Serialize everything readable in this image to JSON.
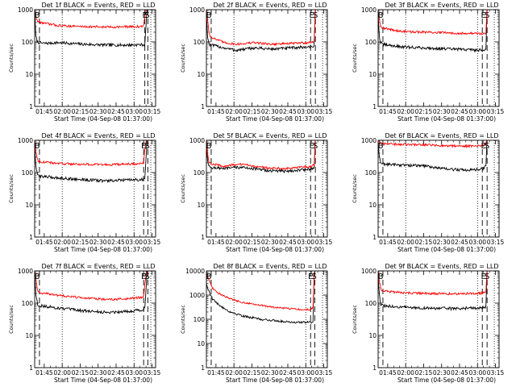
{
  "colors": {
    "events": "#000000",
    "lld": "#ff0000",
    "axes": "#000000",
    "background": "#ffffff"
  },
  "chart_data": [
    {
      "type": "line",
      "title": "Det 1f BLACK = Events, RED = LLD",
      "xlabel": "Start Time (04-Sep-08 01:37:00)",
      "ylabel": "Counts/sec",
      "y_scale": "log",
      "ylim": [
        1,
        1000
      ],
      "ytick_labels": [
        "1",
        "10",
        "100",
        "1000"
      ],
      "x_unit": "minutes after 01:37:00",
      "xlim": [
        0,
        101
      ],
      "xtick_labels": [
        "01:45",
        "02:00",
        "02:15",
        "02:30",
        "02:45",
        "03:00",
        "03:15"
      ],
      "markers": [
        {
          "label": "E",
          "x": 92
        },
        {
          "label": "S",
          "x": 94
        }
      ],
      "dashed_lines_x": [
        4,
        92,
        94.5
      ],
      "dotted_lines_x": [
        23,
        83,
        97
      ],
      "series": [
        {
          "name": "Events",
          "color": "#000000",
          "x": [
            0,
            1,
            2,
            3,
            8,
            20,
            40,
            60,
            75,
            90,
            91,
            92,
            94
          ],
          "values": [
            800,
            150,
            105,
            95,
            90,
            95,
            85,
            80,
            80,
            82,
            82,
            82,
            1200
          ]
        },
        {
          "name": "LLD",
          "color": "#ff0000",
          "x": [
            0,
            1,
            2,
            3,
            8,
            20,
            40,
            60,
            75,
            90,
            91,
            92,
            94
          ],
          "values": [
            1100,
            600,
            480,
            420,
            380,
            320,
            300,
            290,
            295,
            300,
            310,
            700,
            1200
          ]
        }
      ]
    },
    {
      "type": "line",
      "title": "Det 2f BLACK = Events, RED = LLD",
      "xlabel": "Start Time (04-Sep-08 01:37:00)",
      "ylabel": "Counts/sec",
      "y_scale": "log",
      "ylim": [
        1,
        1000
      ],
      "ytick_labels": [
        "1",
        "10",
        "100",
        "1000"
      ],
      "x_unit": "minutes after 01:37:00",
      "xlim": [
        0,
        101
      ],
      "xtick_labels": [
        "01:45",
        "02:00",
        "02:15",
        "02:30",
        "02:45",
        "03:00",
        "03:15"
      ],
      "markers": [
        {
          "label": "E",
          "x": 88
        },
        {
          "label": "S",
          "x": 91
        }
      ],
      "dashed_lines_x": [
        4,
        87,
        91
      ],
      "dotted_lines_x": [
        23,
        83,
        97
      ],
      "series": [
        {
          "name": "Events",
          "color": "#000000",
          "x": [
            0,
            1,
            2,
            3,
            8,
            15,
            25,
            40,
            55,
            70,
            85,
            90,
            91
          ],
          "values": [
            700,
            150,
            90,
            80,
            75,
            65,
            55,
            65,
            60,
            65,
            70,
            75,
            1200
          ]
        },
        {
          "name": "LLD",
          "color": "#ff0000",
          "x": [
            0,
            1,
            2,
            3,
            8,
            15,
            25,
            40,
            55,
            70,
            85,
            90,
            91
          ],
          "values": [
            1100,
            500,
            220,
            150,
            120,
            95,
            85,
            95,
            85,
            90,
            95,
            100,
            1200
          ]
        }
      ]
    },
    {
      "type": "line",
      "title": "Det 3f BLACK = Events, RED = LLD",
      "xlabel": "Start Time (04-Sep-08 01:37:00)",
      "ylabel": "Counts/sec",
      "y_scale": "log",
      "ylim": [
        1,
        1000
      ],
      "ytick_labels": [
        "1",
        "10",
        "100",
        "1000"
      ],
      "x_unit": "minutes after 01:37:00",
      "xlim": [
        0,
        101
      ],
      "xtick_labels": [
        "01:45",
        "02:00",
        "02:15",
        "02:30",
        "02:45",
        "03:00",
        "03:15"
      ],
      "markers": [
        {
          "label": "E",
          "x": 88
        },
        {
          "label": "S",
          "x": 91
        }
      ],
      "dashed_lines_x": [
        4,
        87,
        91
      ],
      "dotted_lines_x": [
        23,
        83,
        97
      ],
      "series": [
        {
          "name": "Events",
          "color": "#000000",
          "x": [
            0,
            1,
            2,
            3,
            8,
            20,
            40,
            60,
            75,
            88,
            90,
            91
          ],
          "values": [
            700,
            150,
            95,
            85,
            80,
            70,
            65,
            60,
            58,
            55,
            60,
            1200
          ]
        },
        {
          "name": "LLD",
          "color": "#ff0000",
          "x": [
            0,
            1,
            2,
            3,
            8,
            20,
            40,
            60,
            75,
            88,
            90,
            91
          ],
          "values": [
            1100,
            500,
            350,
            280,
            250,
            210,
            200,
            190,
            185,
            180,
            190,
            1200
          ]
        }
      ]
    },
    {
      "type": "line",
      "title": "Det 4f BLACK = Events, RED = LLD",
      "xlabel": "Start Time (04-Sep-08 01:37:00)",
      "ylabel": "Counts/sec",
      "y_scale": "log",
      "ylim": [
        1,
        1000
      ],
      "ytick_labels": [
        "1",
        "10",
        "100",
        "1000"
      ],
      "x_unit": "minutes after 01:37:00",
      "xlim": [
        0,
        101
      ],
      "xtick_labels": [
        "01:45",
        "02:00",
        "02:15",
        "02:30",
        "02:45",
        "03:00",
        "03:15"
      ],
      "markers": [
        {
          "label": "E",
          "x": 91
        },
        {
          "label": "S",
          "x": 94
        }
      ],
      "dashed_lines_x": [
        4,
        91,
        94.5
      ],
      "dotted_lines_x": [
        23,
        83,
        97
      ],
      "series": [
        {
          "name": "Events",
          "color": "#000000",
          "x": [
            0,
            1,
            2,
            3,
            8,
            20,
            40,
            60,
            75,
            90,
            91,
            92,
            94
          ],
          "values": [
            700,
            150,
            95,
            80,
            75,
            68,
            60,
            55,
            58,
            60,
            62,
            70,
            1200
          ]
        },
        {
          "name": "LLD",
          "color": "#ff0000",
          "x": [
            0,
            1,
            2,
            3,
            8,
            20,
            40,
            60,
            75,
            90,
            91,
            92,
            94
          ],
          "values": [
            1100,
            450,
            280,
            230,
            210,
            190,
            180,
            175,
            180,
            190,
            200,
            500,
            1200
          ]
        }
      ]
    },
    {
      "type": "line",
      "title": "Det 5f BLACK = Events, RED = LLD",
      "xlabel": "Start Time (04-Sep-08 01:37:00)",
      "ylabel": "Counts/sec",
      "y_scale": "log",
      "ylim": [
        1,
        1000
      ],
      "ytick_labels": [
        "1",
        "10",
        "100",
        "1000"
      ],
      "x_unit": "minutes after 01:37:00",
      "xlim": [
        0,
        101
      ],
      "xtick_labels": [
        "01:45",
        "02:00",
        "02:15",
        "02:30",
        "02:45",
        "03:00",
        "03:15"
      ],
      "markers": [
        {
          "label": "E",
          "x": 88
        },
        {
          "label": "S",
          "x": 91
        }
      ],
      "dashed_lines_x": [
        4,
        87,
        91
      ],
      "dotted_lines_x": [
        23,
        83,
        97
      ],
      "series": [
        {
          "name": "Events",
          "color": "#000000",
          "x": [
            0,
            1,
            2,
            3,
            8,
            15,
            25,
            35,
            50,
            65,
            80,
            88,
            90,
            91
          ],
          "values": [
            700,
            250,
            160,
            145,
            140,
            130,
            145,
            140,
            115,
            110,
            120,
            130,
            135,
            1200
          ]
        },
        {
          "name": "LLD",
          "color": "#ff0000",
          "x": [
            0,
            1,
            2,
            3,
            8,
            15,
            25,
            35,
            50,
            65,
            80,
            88,
            90,
            91
          ],
          "values": [
            1100,
            400,
            230,
            190,
            175,
            155,
            180,
            170,
            140,
            135,
            145,
            160,
            170,
            1200
          ]
        }
      ]
    },
    {
      "type": "line",
      "title": "Det 6f BLACK = Events, RED = LLD",
      "xlabel": "Start Time (04-Sep-08 01:37:00)",
      "ylabel": "Counts/sec",
      "y_scale": "log",
      "ylim": [
        1,
        1000
      ],
      "ytick_labels": [
        "1",
        "10",
        "100",
        "1000"
      ],
      "x_unit": "minutes after 01:37:00",
      "xlim": [
        0,
        101
      ],
      "xtick_labels": [
        "01:45",
        "02:00",
        "02:15",
        "02:30",
        "02:45",
        "03:00",
        "03:15"
      ],
      "markers": [
        {
          "label": "E",
          "x": 88
        },
        {
          "label": "S",
          "x": 91
        }
      ],
      "dashed_lines_x": [
        4,
        87,
        91
      ],
      "dotted_lines_x": [
        23,
        83,
        97
      ],
      "series": [
        {
          "name": "Events",
          "color": "#000000",
          "x": [
            0,
            1,
            2,
            3,
            8,
            20,
            40,
            55,
            70,
            85,
            88,
            90,
            91
          ],
          "values": [
            700,
            300,
            210,
            190,
            180,
            170,
            160,
            130,
            120,
            125,
            130,
            160,
            1200
          ]
        },
        {
          "name": "LLD",
          "color": "#ff0000",
          "x": [
            0,
            1,
            2,
            3,
            8,
            20,
            40,
            55,
            70,
            85,
            88,
            90,
            91
          ],
          "values": [
            1100,
            900,
            800,
            780,
            770,
            740,
            720,
            680,
            660,
            680,
            700,
            750,
            1200
          ]
        }
      ]
    },
    {
      "type": "line",
      "title": "Det 7f BLACK = Events, RED = LLD",
      "xlabel": "Start Time (04-Sep-08 01:37:00)",
      "ylabel": "Counts/sec",
      "y_scale": "log",
      "ylim": [
        1,
        1000
      ],
      "ytick_labels": [
        "1",
        "10",
        "100",
        "1000"
      ],
      "x_unit": "minutes after 01:37:00",
      "xlim": [
        0,
        101
      ],
      "xtick_labels": [
        "01:45",
        "02:00",
        "02:15",
        "02:30",
        "02:45",
        "03:00",
        "03:15"
      ],
      "markers": [
        {
          "label": "E",
          "x": 91
        },
        {
          "label": "S",
          "x": 94
        }
      ],
      "dashed_lines_x": [
        4,
        91,
        94.5
      ],
      "dotted_lines_x": [
        23,
        83,
        97
      ],
      "series": [
        {
          "name": "Events",
          "color": "#000000",
          "x": [
            0,
            1,
            2,
            3,
            8,
            20,
            40,
            60,
            75,
            90,
            91,
            92,
            94
          ],
          "values": [
            700,
            200,
            110,
            85,
            80,
            70,
            58,
            52,
            55,
            62,
            65,
            70,
            1200
          ]
        },
        {
          "name": "LLD",
          "color": "#ff0000",
          "x": [
            0,
            1,
            2,
            3,
            8,
            20,
            40,
            60,
            75,
            90,
            91,
            92,
            94
          ],
          "values": [
            1100,
            600,
            300,
            220,
            200,
            175,
            145,
            130,
            135,
            150,
            160,
            400,
            1200
          ]
        }
      ]
    },
    {
      "type": "line",
      "title": "Det 8f BLACK = Events, RED = LLD",
      "xlabel": "Start Time (04-Sep-08 01:37:00)",
      "ylabel": "Counts/sec",
      "y_scale": "log",
      "ylim": [
        1,
        10000
      ],
      "ytick_labels": [
        "1",
        "10",
        "100",
        "1000",
        "10000"
      ],
      "x_unit": "minutes after 01:37:00",
      "xlim": [
        0,
        101
      ],
      "xtick_labels": [
        "01:45",
        "02:00",
        "02:15",
        "02:30",
        "02:45",
        "03:00",
        "03:15"
      ],
      "markers": [
        {
          "label": "E",
          "x": 87
        },
        {
          "label": "S",
          "x": 90
        }
      ],
      "dashed_lines_x": [
        4,
        87,
        90.5
      ],
      "dotted_lines_x": [
        23,
        83,
        97
      ],
      "series": [
        {
          "name": "Events",
          "color": "#000000",
          "x": [
            0,
            1,
            3,
            5,
            10,
            20,
            30,
            45,
            60,
            75,
            87,
            89,
            90
          ],
          "values": [
            3000,
            2000,
            1200,
            700,
            400,
            200,
            140,
            100,
            85,
            75,
            75,
            80,
            8000
          ]
        },
        {
          "name": "LLD",
          "color": "#ff0000",
          "x": [
            0,
            1,
            3,
            5,
            10,
            20,
            30,
            45,
            60,
            75,
            87,
            89,
            90
          ],
          "values": [
            8000,
            6000,
            3500,
            2000,
            1200,
            700,
            500,
            380,
            300,
            260,
            250,
            300,
            8000
          ]
        }
      ]
    },
    {
      "type": "line",
      "title": "Det 9f BLACK = Events, RED = LLD",
      "xlabel": "Start Time (04-Sep-08 01:37:00)",
      "ylabel": "Counts/sec",
      "y_scale": "log",
      "ylim": [
        1,
        1000
      ],
      "ytick_labels": [
        "1",
        "10",
        "100",
        "1000"
      ],
      "x_unit": "minutes after 01:37:00",
      "xlim": [
        0,
        101
      ],
      "xtick_labels": [
        "01:45",
        "02:00",
        "02:15",
        "02:30",
        "02:45",
        "03:00",
        "03:15"
      ],
      "markers": [
        {
          "label": "E",
          "x": 88
        },
        {
          "label": "S",
          "x": 91
        }
      ],
      "dashed_lines_x": [
        4,
        87,
        91
      ],
      "dotted_lines_x": [
        23,
        83,
        97
      ],
      "series": [
        {
          "name": "Events",
          "color": "#000000",
          "x": [
            0,
            1,
            2,
            3,
            8,
            20,
            40,
            60,
            75,
            88,
            90,
            91
          ],
          "values": [
            700,
            180,
            100,
            85,
            80,
            75,
            70,
            68,
            70,
            72,
            80,
            1200
          ]
        },
        {
          "name": "LLD",
          "color": "#ff0000",
          "x": [
            0,
            1,
            2,
            3,
            8,
            20,
            40,
            60,
            75,
            88,
            90,
            91
          ],
          "values": [
            1100,
            500,
            300,
            250,
            230,
            210,
            200,
            195,
            200,
            205,
            220,
            1200
          ]
        }
      ]
    }
  ]
}
